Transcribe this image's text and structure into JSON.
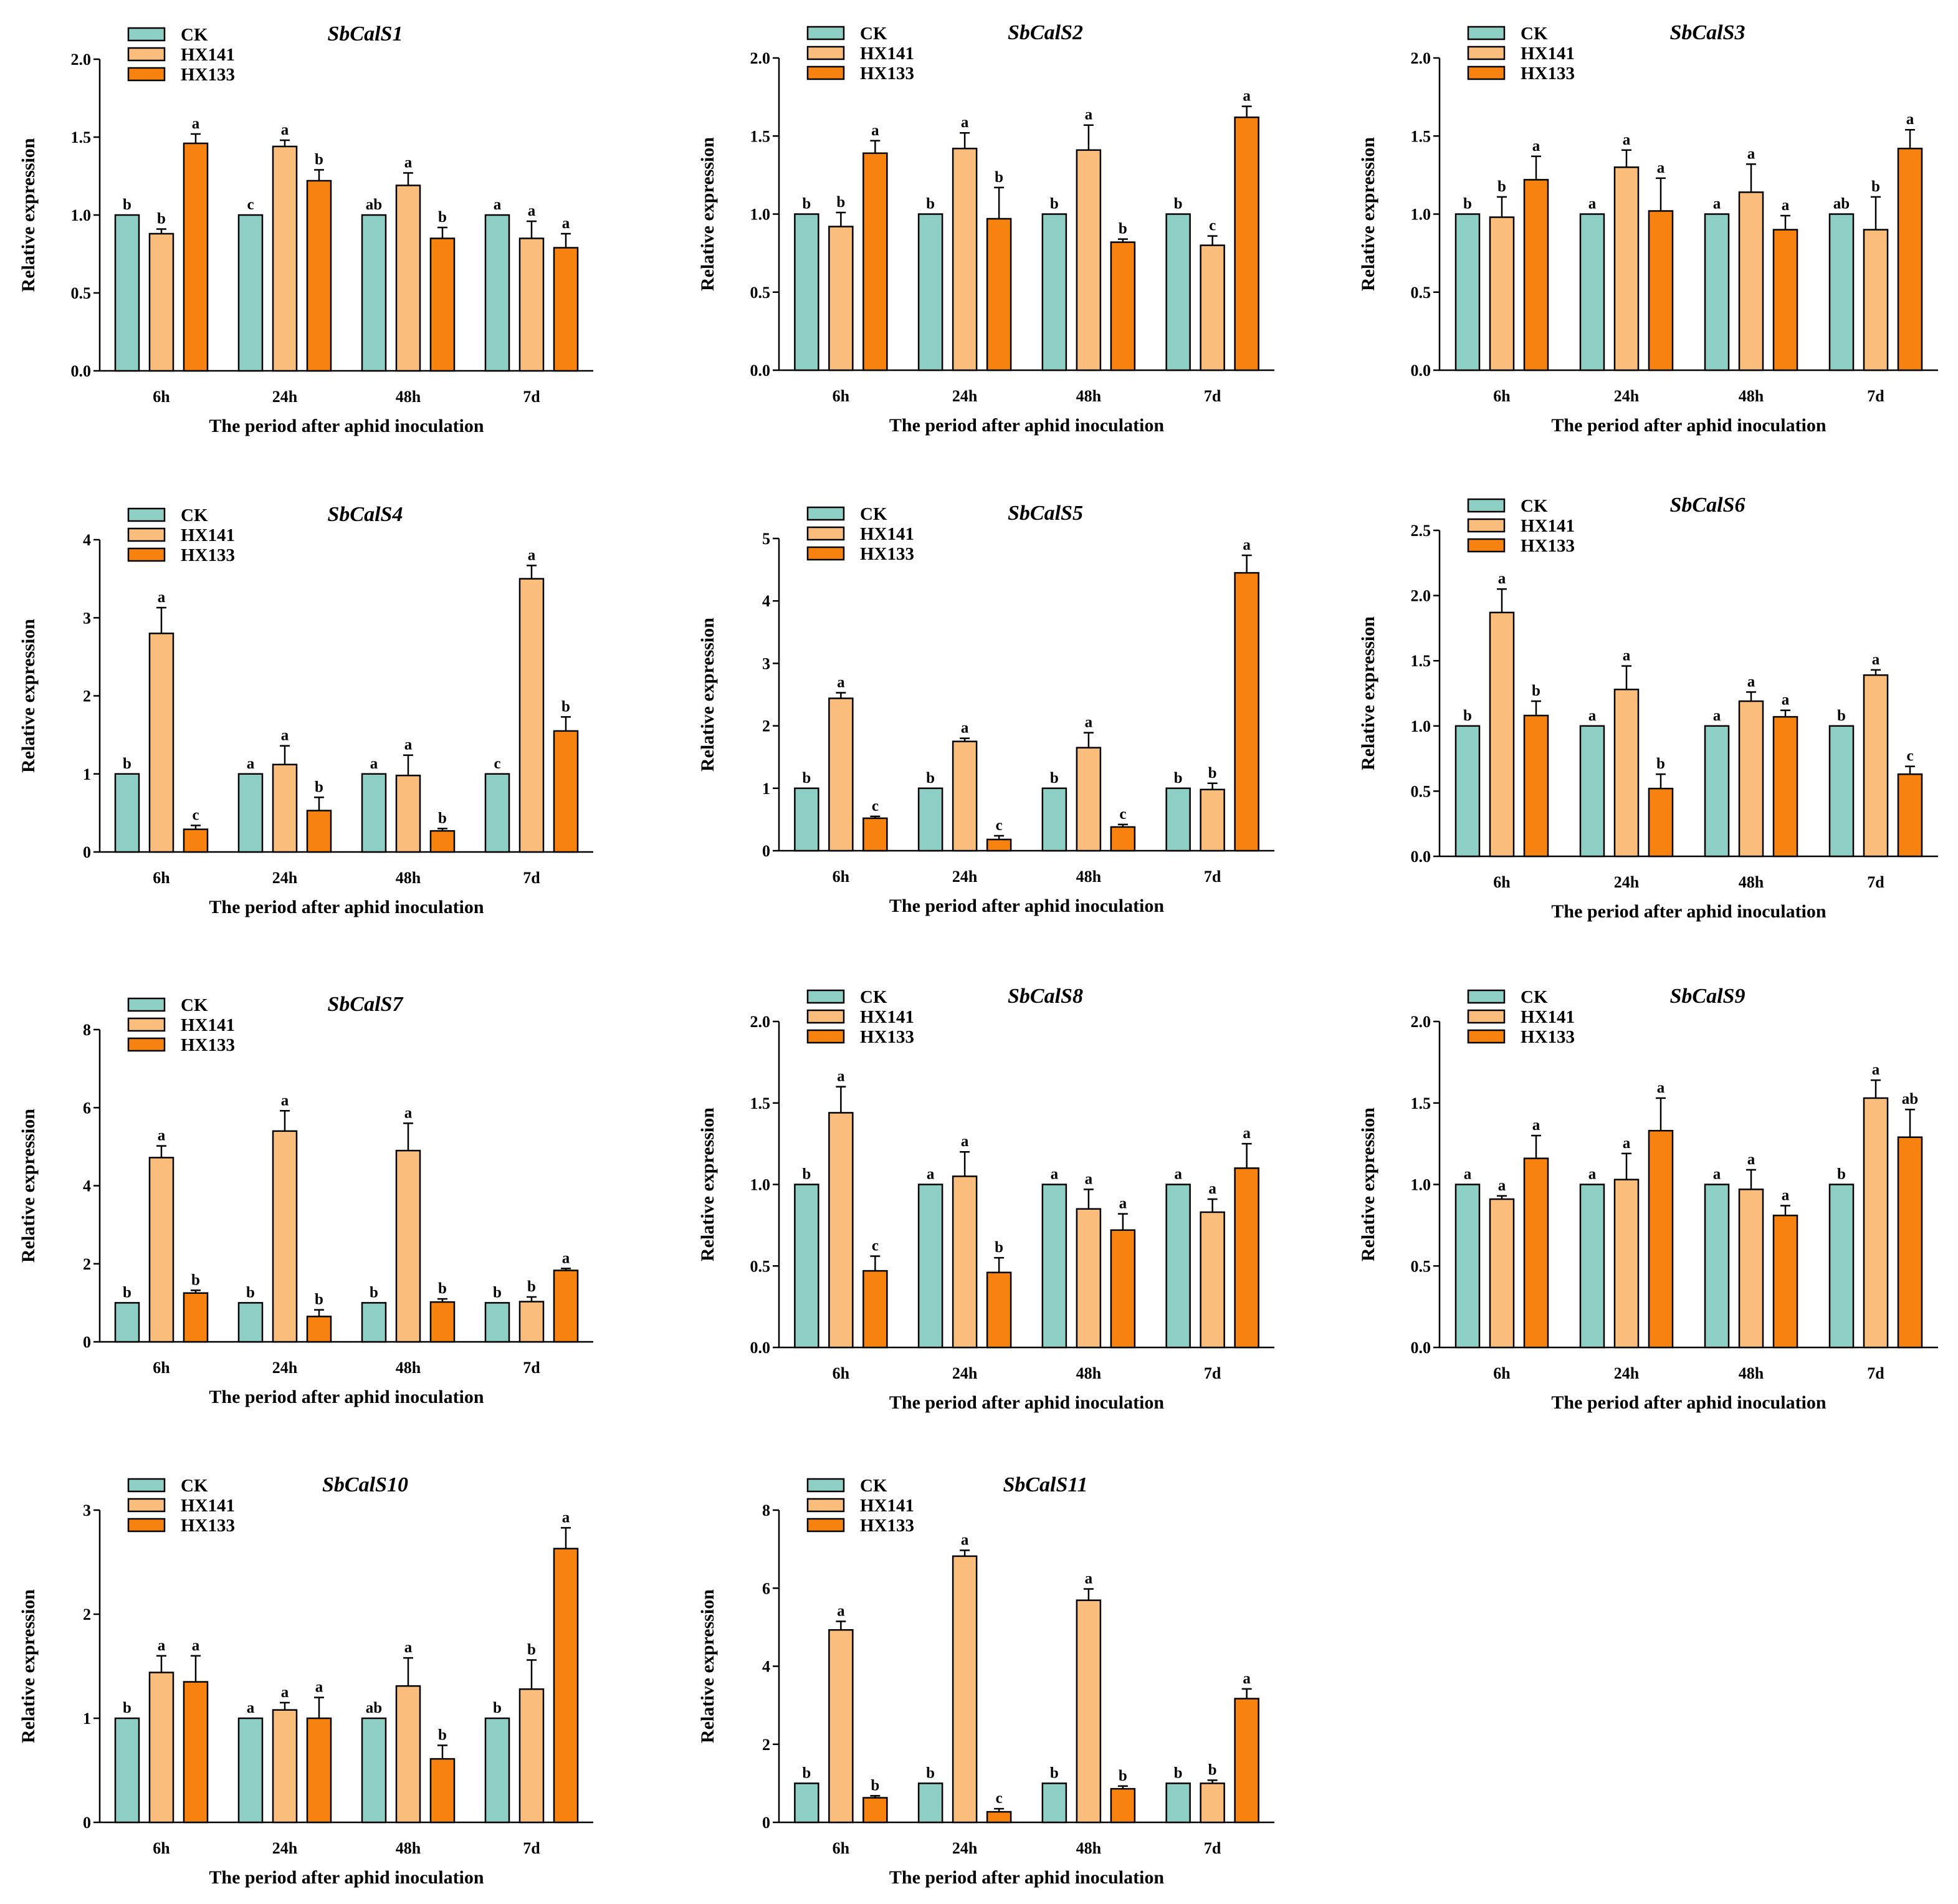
{
  "figure": {
    "xlabel": "The period after aphid inoculation",
    "ylabel": "Relative expression",
    "colors": {
      "CK": "#8ecfc5",
      "HX141": "#fbbd7c",
      "HX133": "#f7820f"
    }
  },
  "chart_data": [
    {
      "type": "bar",
      "title": "SbCalS1",
      "categories": [
        "6h",
        "24h",
        "48h",
        "7d"
      ],
      "ylim": [
        0,
        2.0
      ],
      "yticks": [
        "0.0",
        "0.5",
        "1.0",
        "1.5",
        "2.0"
      ],
      "legend": "top-left",
      "series": [
        {
          "name": "CK",
          "values": [
            1.0,
            1.0,
            1.0,
            1.0
          ],
          "errors": [
            0,
            0,
            0,
            0
          ],
          "labels": [
            "b",
            "c",
            "ab",
            "a"
          ]
        },
        {
          "name": "HX141",
          "values": [
            0.88,
            1.44,
            1.19,
            0.85
          ],
          "errors": [
            0.03,
            0.04,
            0.08,
            0.11
          ],
          "labels": [
            "b",
            "a",
            "a",
            "a"
          ]
        },
        {
          "name": "HX133",
          "values": [
            1.46,
            1.22,
            0.85,
            0.79
          ],
          "errors": [
            0.06,
            0.07,
            0.07,
            0.09
          ],
          "labels": [
            "a",
            "b",
            "b",
            "a"
          ]
        }
      ]
    },
    {
      "type": "bar",
      "title": "SbCalS2",
      "categories": [
        "6h",
        "24h",
        "48h",
        "7d"
      ],
      "ylim": [
        0,
        2.0
      ],
      "yticks": [
        "0.0",
        "0.5",
        "1.0",
        "1.5",
        "2.0"
      ],
      "legend": "top-left",
      "series": [
        {
          "name": "CK",
          "values": [
            1.0,
            1.0,
            1.0,
            1.0
          ],
          "errors": [
            0,
            0,
            0,
            0
          ],
          "labels": [
            "b",
            "b",
            "b",
            "b"
          ]
        },
        {
          "name": "HX141",
          "values": [
            0.92,
            1.42,
            1.41,
            0.8
          ],
          "errors": [
            0.09,
            0.1,
            0.16,
            0.06
          ],
          "labels": [
            "b",
            "a",
            "a",
            "c"
          ]
        },
        {
          "name": "HX133",
          "values": [
            1.39,
            0.97,
            0.82,
            1.62
          ],
          "errors": [
            0.08,
            0.2,
            0.02,
            0.07
          ],
          "labels": [
            "a",
            "b",
            "b",
            "a"
          ]
        }
      ]
    },
    {
      "type": "bar",
      "title": "SbCalS3",
      "categories": [
        "6h",
        "24h",
        "48h",
        "7d"
      ],
      "ylim": [
        0,
        2.0
      ],
      "yticks": [
        "0.0",
        "0.5",
        "1.0",
        "1.5",
        "2.0"
      ],
      "legend": "top-left",
      "series": [
        {
          "name": "CK",
          "values": [
            1.0,
            1.0,
            1.0,
            1.0
          ],
          "errors": [
            0,
            0,
            0,
            0
          ],
          "labels": [
            "b",
            "a",
            "a",
            "ab"
          ]
        },
        {
          "name": "HX141",
          "values": [
            0.98,
            1.3,
            1.14,
            0.9
          ],
          "errors": [
            0.13,
            0.11,
            0.18,
            0.21
          ],
          "labels": [
            "b",
            "a",
            "a",
            "b"
          ]
        },
        {
          "name": "HX133",
          "values": [
            1.22,
            1.02,
            0.9,
            1.42
          ],
          "errors": [
            0.15,
            0.21,
            0.09,
            0.12
          ],
          "labels": [
            "a",
            "a",
            "a",
            "a"
          ]
        }
      ]
    },
    {
      "type": "bar",
      "title": "SbCalS4",
      "categories": [
        "6h",
        "24h",
        "48h",
        "7d"
      ],
      "ylim": [
        0,
        4
      ],
      "yticks": [
        "0",
        "1",
        "2",
        "3",
        "4"
      ],
      "legend": "top-left",
      "series": [
        {
          "name": "CK",
          "values": [
            1.0,
            1.0,
            1.0,
            1.0
          ],
          "errors": [
            0,
            0,
            0,
            0
          ],
          "labels": [
            "b",
            "a",
            "a",
            "c"
          ]
        },
        {
          "name": "HX141",
          "values": [
            2.8,
            1.12,
            0.98,
            3.5
          ],
          "errors": [
            0.33,
            0.24,
            0.26,
            0.17
          ],
          "labels": [
            "a",
            "a",
            "a",
            "a"
          ]
        },
        {
          "name": "HX133",
          "values": [
            0.29,
            0.53,
            0.27,
            1.55
          ],
          "errors": [
            0.05,
            0.17,
            0.03,
            0.18
          ],
          "labels": [
            "c",
            "b",
            "b",
            "b"
          ]
        }
      ]
    },
    {
      "type": "bar",
      "title": "SbCalS5",
      "categories": [
        "6h",
        "24h",
        "48h",
        "7d"
      ],
      "ylim": [
        0,
        5
      ],
      "yticks": [
        "0",
        "1",
        "2",
        "3",
        "4",
        "5"
      ],
      "legend": "top-left",
      "series": [
        {
          "name": "CK",
          "values": [
            1.0,
            1.0,
            1.0,
            1.0
          ],
          "errors": [
            0,
            0,
            0,
            0
          ],
          "labels": [
            "b",
            "b",
            "b",
            "b"
          ]
        },
        {
          "name": "HX141",
          "values": [
            2.44,
            1.75,
            1.65,
            0.98
          ],
          "errors": [
            0.09,
            0.05,
            0.24,
            0.1
          ],
          "labels": [
            "a",
            "a",
            "a",
            "b"
          ]
        },
        {
          "name": "HX133",
          "values": [
            0.52,
            0.18,
            0.38,
            4.45
          ],
          "errors": [
            0.03,
            0.06,
            0.04,
            0.28
          ],
          "labels": [
            "c",
            "c",
            "c",
            "a"
          ]
        }
      ]
    },
    {
      "type": "bar",
      "title": "SbCalS6",
      "categories": [
        "6h",
        "24h",
        "48h",
        "7d"
      ],
      "ylim": [
        0,
        2.5
      ],
      "yticks": [
        "0.0",
        "0.5",
        "1.0",
        "1.5",
        "2.0",
        "2.5"
      ],
      "legend": "top-left",
      "series": [
        {
          "name": "CK",
          "values": [
            1.0,
            1.0,
            1.0,
            1.0
          ],
          "errors": [
            0,
            0,
            0,
            0
          ],
          "labels": [
            "b",
            "a",
            "a",
            "b"
          ]
        },
        {
          "name": "HX141",
          "values": [
            1.87,
            1.28,
            1.19,
            1.39
          ],
          "errors": [
            0.18,
            0.18,
            0.07,
            0.04
          ],
          "labels": [
            "a",
            "a",
            "a",
            "a"
          ]
        },
        {
          "name": "HX133",
          "values": [
            1.08,
            0.52,
            1.07,
            0.63
          ],
          "errors": [
            0.11,
            0.11,
            0.05,
            0.06
          ],
          "labels": [
            "b",
            "b",
            "a",
            "c"
          ]
        }
      ]
    },
    {
      "type": "bar",
      "title": "SbCalS7",
      "categories": [
        "6h",
        "24h",
        "48h",
        "7d"
      ],
      "ylim": [
        0,
        8
      ],
      "yticks": [
        "0",
        "2",
        "4",
        "6",
        "8"
      ],
      "legend": "top-left",
      "series": [
        {
          "name": "CK",
          "values": [
            1.0,
            1.0,
            1.0,
            1.0
          ],
          "errors": [
            0,
            0,
            0,
            0
          ],
          "labels": [
            "b",
            "b",
            "b",
            "b"
          ]
        },
        {
          "name": "HX141",
          "values": [
            4.72,
            5.4,
            4.9,
            1.03
          ],
          "errors": [
            0.3,
            0.52,
            0.7,
            0.12
          ],
          "labels": [
            "a",
            "a",
            "a",
            "b"
          ]
        },
        {
          "name": "HX133",
          "values": [
            1.25,
            0.65,
            1.02,
            1.83
          ],
          "errors": [
            0.07,
            0.17,
            0.08,
            0.05
          ],
          "labels": [
            "b",
            "b",
            "b",
            "a"
          ]
        }
      ]
    },
    {
      "type": "bar",
      "title": "SbCalS8",
      "categories": [
        "6h",
        "24h",
        "48h",
        "7d"
      ],
      "ylim": [
        0,
        2.0
      ],
      "yticks": [
        "0.0",
        "0.5",
        "1.0",
        "1.5",
        "2.0"
      ],
      "legend": "top-left",
      "series": [
        {
          "name": "CK",
          "values": [
            1.0,
            1.0,
            1.0,
            1.0
          ],
          "errors": [
            0,
            0,
            0,
            0
          ],
          "labels": [
            "b",
            "a",
            "a",
            "a"
          ]
        },
        {
          "name": "HX141",
          "values": [
            1.44,
            1.05,
            0.85,
            0.83
          ],
          "errors": [
            0.16,
            0.15,
            0.12,
            0.08
          ],
          "labels": [
            "a",
            "a",
            "a",
            "a"
          ]
        },
        {
          "name": "HX133",
          "values": [
            0.47,
            0.46,
            0.72,
            1.1
          ],
          "errors": [
            0.09,
            0.09,
            0.1,
            0.15
          ],
          "labels": [
            "c",
            "b",
            "a",
            "a"
          ]
        }
      ]
    },
    {
      "type": "bar",
      "title": "SbCalS9",
      "categories": [
        "6h",
        "24h",
        "48h",
        "7d"
      ],
      "ylim": [
        0,
        2.0
      ],
      "yticks": [
        "0.0",
        "0.5",
        "1.0",
        "1.5",
        "2.0"
      ],
      "legend": "top-left",
      "series": [
        {
          "name": "CK",
          "values": [
            1.0,
            1.0,
            1.0,
            1.0
          ],
          "errors": [
            0,
            0,
            0,
            0
          ],
          "labels": [
            "a",
            "a",
            "a",
            "b"
          ]
        },
        {
          "name": "HX141",
          "values": [
            0.91,
            1.03,
            0.97,
            1.53
          ],
          "errors": [
            0.02,
            0.16,
            0.12,
            0.11
          ],
          "labels": [
            "a",
            "a",
            "a",
            "a"
          ]
        },
        {
          "name": "HX133",
          "values": [
            1.16,
            1.33,
            0.81,
            1.29
          ],
          "errors": [
            0.14,
            0.2,
            0.06,
            0.17
          ],
          "labels": [
            "a",
            "a",
            "a",
            "ab"
          ]
        }
      ]
    },
    {
      "type": "bar",
      "title": "SbCalS10",
      "categories": [
        "6h",
        "24h",
        "48h",
        "7d"
      ],
      "ylim": [
        0,
        3
      ],
      "yticks": [
        "0",
        "1",
        "2",
        "3"
      ],
      "legend": "top-left",
      "series": [
        {
          "name": "CK",
          "values": [
            1.0,
            1.0,
            1.0,
            1.0
          ],
          "errors": [
            0,
            0,
            0,
            0
          ],
          "labels": [
            "b",
            "a",
            "ab",
            "b"
          ]
        },
        {
          "name": "HX141",
          "values": [
            1.44,
            1.08,
            1.31,
            1.28
          ],
          "errors": [
            0.16,
            0.07,
            0.27,
            0.28
          ],
          "labels": [
            "a",
            "a",
            "a",
            "b"
          ]
        },
        {
          "name": "HX133",
          "values": [
            1.35,
            1.0,
            0.61,
            2.63
          ],
          "errors": [
            0.25,
            0.2,
            0.13,
            0.2
          ],
          "labels": [
            "a",
            "a",
            "b",
            "a"
          ]
        }
      ]
    },
    {
      "type": "bar",
      "title": "SbCalS11",
      "categories": [
        "6h",
        "24h",
        "48h",
        "7d"
      ],
      "ylim": [
        0,
        8
      ],
      "yticks": [
        "0",
        "2",
        "4",
        "6",
        "8"
      ],
      "legend": "top-left",
      "series": [
        {
          "name": "CK",
          "values": [
            1.0,
            1.0,
            1.0,
            1.0
          ],
          "errors": [
            0,
            0,
            0,
            0
          ],
          "labels": [
            "b",
            "b",
            "b",
            "b"
          ]
        },
        {
          "name": "HX141",
          "values": [
            4.93,
            6.82,
            5.69,
            1.0
          ],
          "errors": [
            0.22,
            0.15,
            0.29,
            0.08
          ],
          "labels": [
            "a",
            "a",
            "a",
            "b"
          ]
        },
        {
          "name": "HX133",
          "values": [
            0.63,
            0.27,
            0.86,
            3.17
          ],
          "errors": [
            0.05,
            0.08,
            0.07,
            0.25
          ],
          "labels": [
            "b",
            "c",
            "b",
            "a"
          ]
        }
      ]
    }
  ]
}
